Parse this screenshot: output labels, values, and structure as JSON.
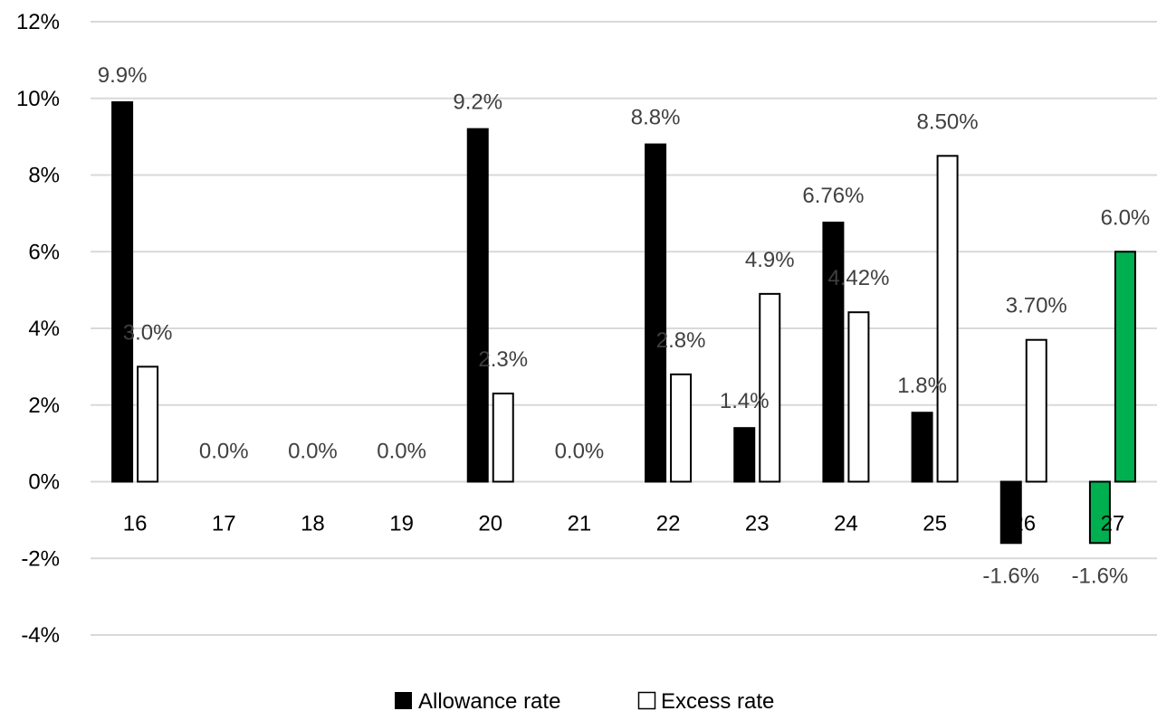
{
  "chart_data": {
    "type": "bar",
    "categories": [
      "16",
      "17",
      "18",
      "19",
      "20",
      "21",
      "22",
      "23",
      "24",
      "25",
      "26",
      "27"
    ],
    "series": [
      {
        "name": "Allowance rate",
        "values": [
          9.9,
          0,
          0,
          0,
          9.2,
          0,
          8.8,
          1.4,
          6.76,
          1.8,
          -1.6,
          -1.6
        ],
        "labels": [
          "9.9%",
          "",
          "",
          "",
          "9.2%",
          "",
          "8.8%",
          "1.4%",
          "6.76%",
          "1.8%",
          "-1.6%",
          "-1.6%"
        ],
        "colors": [
          "#000000",
          "#000000",
          "#000000",
          "#000000",
          "#000000",
          "#000000",
          "#000000",
          "#000000",
          "#000000",
          "#000000",
          "#000000",
          "#00b050"
        ]
      },
      {
        "name": "Excess rate",
        "values": [
          3.0,
          0,
          0,
          0,
          2.3,
          0,
          2.8,
          4.9,
          4.42,
          8.5,
          3.7,
          6.0
        ],
        "labels": [
          "3.0%",
          "0.0%",
          "0.0%",
          "0.0%",
          "2.3%",
          "0.0%",
          "2.8%",
          "4.9%",
          "4.42%",
          "8.50%",
          "3.70%",
          "6.0%"
        ],
        "colors": [
          "#ffffff",
          "#ffffff",
          "#ffffff",
          "#ffffff",
          "#ffffff",
          "#ffffff",
          "#ffffff",
          "#ffffff",
          "#ffffff",
          "#ffffff",
          "#ffffff",
          "#00b050"
        ]
      }
    ],
    "ylim": [
      -4,
      12
    ],
    "yticks": [
      -4,
      -2,
      0,
      2,
      4,
      6,
      8,
      10,
      12
    ],
    "ytick_labels": [
      "-4%",
      "-2%",
      "0%",
      "2%",
      "4%",
      "6%",
      "8%",
      "10%",
      "12%"
    ],
    "grid": true,
    "legend_position": "bottom",
    "title": "",
    "xlabel": "",
    "ylabel": ""
  },
  "legend": {
    "allowance_label": "Allowance rate",
    "excess_label": "Excess rate"
  }
}
